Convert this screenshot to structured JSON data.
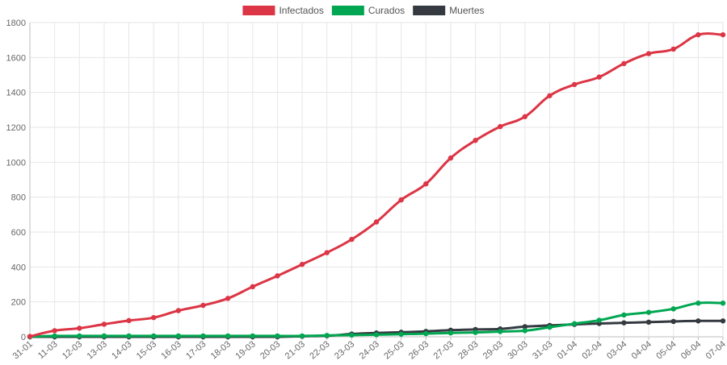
{
  "chart_data": {
    "type": "line",
    "title": "",
    "xlabel": "",
    "ylabel": "",
    "categories": [
      "31-01",
      "11-03",
      "12-03",
      "13-03",
      "14-03",
      "15-03",
      "16-03",
      "17-03",
      "18-03",
      "19-03",
      "20-03",
      "21-03",
      "22-03",
      "23-03",
      "24-03",
      "25-03",
      "26-03",
      "27-03",
      "28-03",
      "29-03",
      "30-03",
      "31-03",
      "01-04",
      "02-04",
      "03-04",
      "04-04",
      "05-04",
      "06-04",
      "07-04"
    ],
    "ylim": [
      0,
      1800
    ],
    "y_ticks": [
      0,
      200,
      400,
      600,
      800,
      1000,
      1200,
      1400,
      1600,
      1800
    ],
    "grid": true,
    "legend": "top-center",
    "series": [
      {
        "name": "Infectados",
        "color": "#dc3545",
        "values": [
          2,
          35,
          49,
          72,
          93,
          110,
          150,
          180,
          220,
          287,
          349,
          415,
          482,
          558,
          658,
          784,
          876,
          1024,
          1125,
          1204,
          1261,
          1381,
          1445,
          1488,
          1565,
          1622,
          1648,
          1730,
          1730
        ]
      },
      {
        "name": "Curados",
        "color": "#00a651",
        "values": [
          0,
          5,
          5,
          5,
          5,
          5,
          5,
          5,
          5,
          5,
          5,
          5,
          8,
          10,
          12,
          15,
          18,
          22,
          25,
          30,
          35,
          55,
          75,
          95,
          125,
          140,
          160,
          193,
          193
        ]
      },
      {
        "name": "Muertes",
        "color": "#343a40",
        "values": [
          0,
          0,
          0,
          0,
          0,
          0,
          0,
          0,
          0,
          0,
          0,
          3,
          6,
          16,
          22,
          26,
          31,
          38,
          42,
          45,
          58,
          65,
          71,
          76,
          80,
          84,
          88,
          91,
          91
        ]
      }
    ]
  }
}
